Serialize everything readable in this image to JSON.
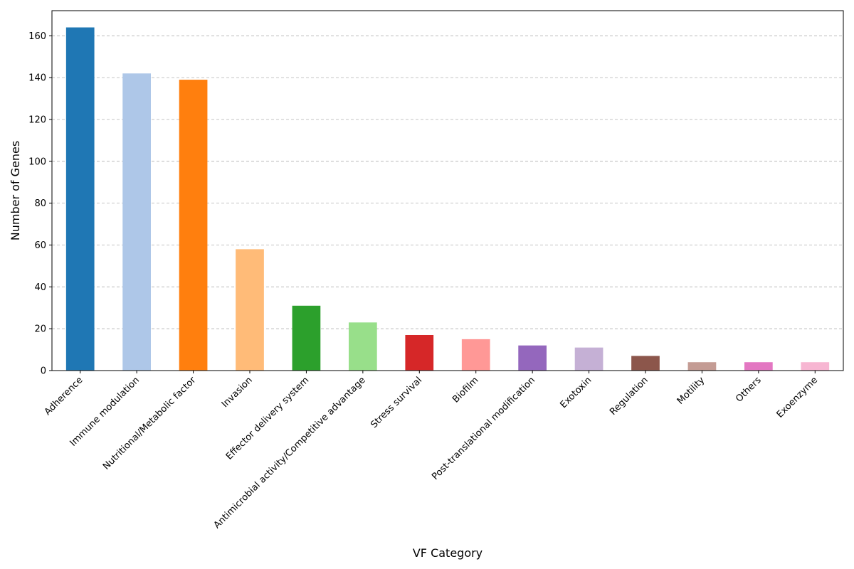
{
  "chart_data": {
    "type": "bar",
    "title": "",
    "xlabel": "VF Category",
    "ylabel": "Number of Genes",
    "ylim": [
      0,
      172
    ],
    "yticks": [
      0,
      20,
      40,
      60,
      80,
      100,
      120,
      140,
      160
    ],
    "grid": "y-dashed",
    "categories": [
      "Adherence",
      "Immune modulation",
      "Nutritional/Metabolic factor",
      "Invasion",
      "Effector delivery system",
      "Antimicrobial activity/Competitive advantage",
      "Stress survival",
      "Biofilm",
      "Post-translational modification",
      "Exotoxin",
      "Regulation",
      "Motility",
      "Others",
      "Exoenzyme"
    ],
    "values": [
      164,
      142,
      139,
      58,
      31,
      23,
      17,
      15,
      12,
      11,
      7,
      4,
      4,
      4
    ],
    "colors": [
      "#1f77b4",
      "#aec7e8",
      "#ff7f0e",
      "#ffbb78",
      "#2ca02c",
      "#98df8a",
      "#d62728",
      "#ff9896",
      "#9467bd",
      "#c5b0d5",
      "#8c564b",
      "#c49c94",
      "#e377c2",
      "#f7b6d2"
    ]
  }
}
